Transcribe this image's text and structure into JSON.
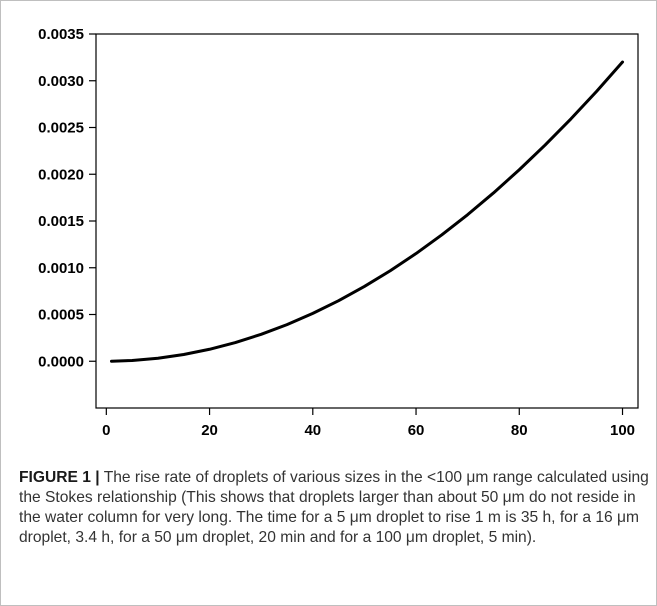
{
  "chart_data": {
    "type": "line",
    "title": "",
    "xlabel": "",
    "ylabel": "",
    "xlim": [
      -2,
      103
    ],
    "ylim": [
      -0.0005,
      0.0035
    ],
    "x_ticks": [
      0,
      20,
      40,
      60,
      80,
      100
    ],
    "x_tick_labels": [
      "0",
      "20",
      "40",
      "60",
      "80",
      "100"
    ],
    "y_ticks": [
      0,
      0.0005,
      0.001,
      0.0015,
      0.002,
      0.0025,
      0.003,
      0.0035
    ],
    "y_tick_labels": [
      "0.0000",
      "0.0005",
      "0.0010",
      "0.0015",
      "0.0020",
      "0.0025",
      "0.0030",
      "0.0035"
    ],
    "grid": false,
    "series": [
      {
        "color": "#000000",
        "x": [
          1,
          5,
          10,
          15,
          20,
          25,
          30,
          35,
          40,
          45,
          50,
          55,
          60,
          65,
          70,
          75,
          80,
          85,
          90,
          95,
          100
        ],
        "values": [
          3e-07,
          8e-06,
          3.2e-05,
          7.2e-05,
          0.000128,
          0.0002,
          0.000288,
          0.000392,
          0.000512,
          0.000648,
          0.0008,
          0.000968,
          0.001152,
          0.001352,
          0.001568,
          0.0018,
          0.002048,
          0.002312,
          0.002592,
          0.002888,
          0.0032
        ]
      }
    ]
  },
  "caption": {
    "label": "FIGURE 1 |",
    "text": "The rise rate of droplets of various sizes in the <100 μm range calculated using the Stokes relationship (This shows that droplets larger than about 50 μm do not reside in the water column for very long. The time for a 5 μm droplet to rise 1 m is 35 h, for a 16 μm droplet, 3.4 h, for a 50 μm droplet, 20 min and for a 100 μm droplet, 5 min)."
  }
}
